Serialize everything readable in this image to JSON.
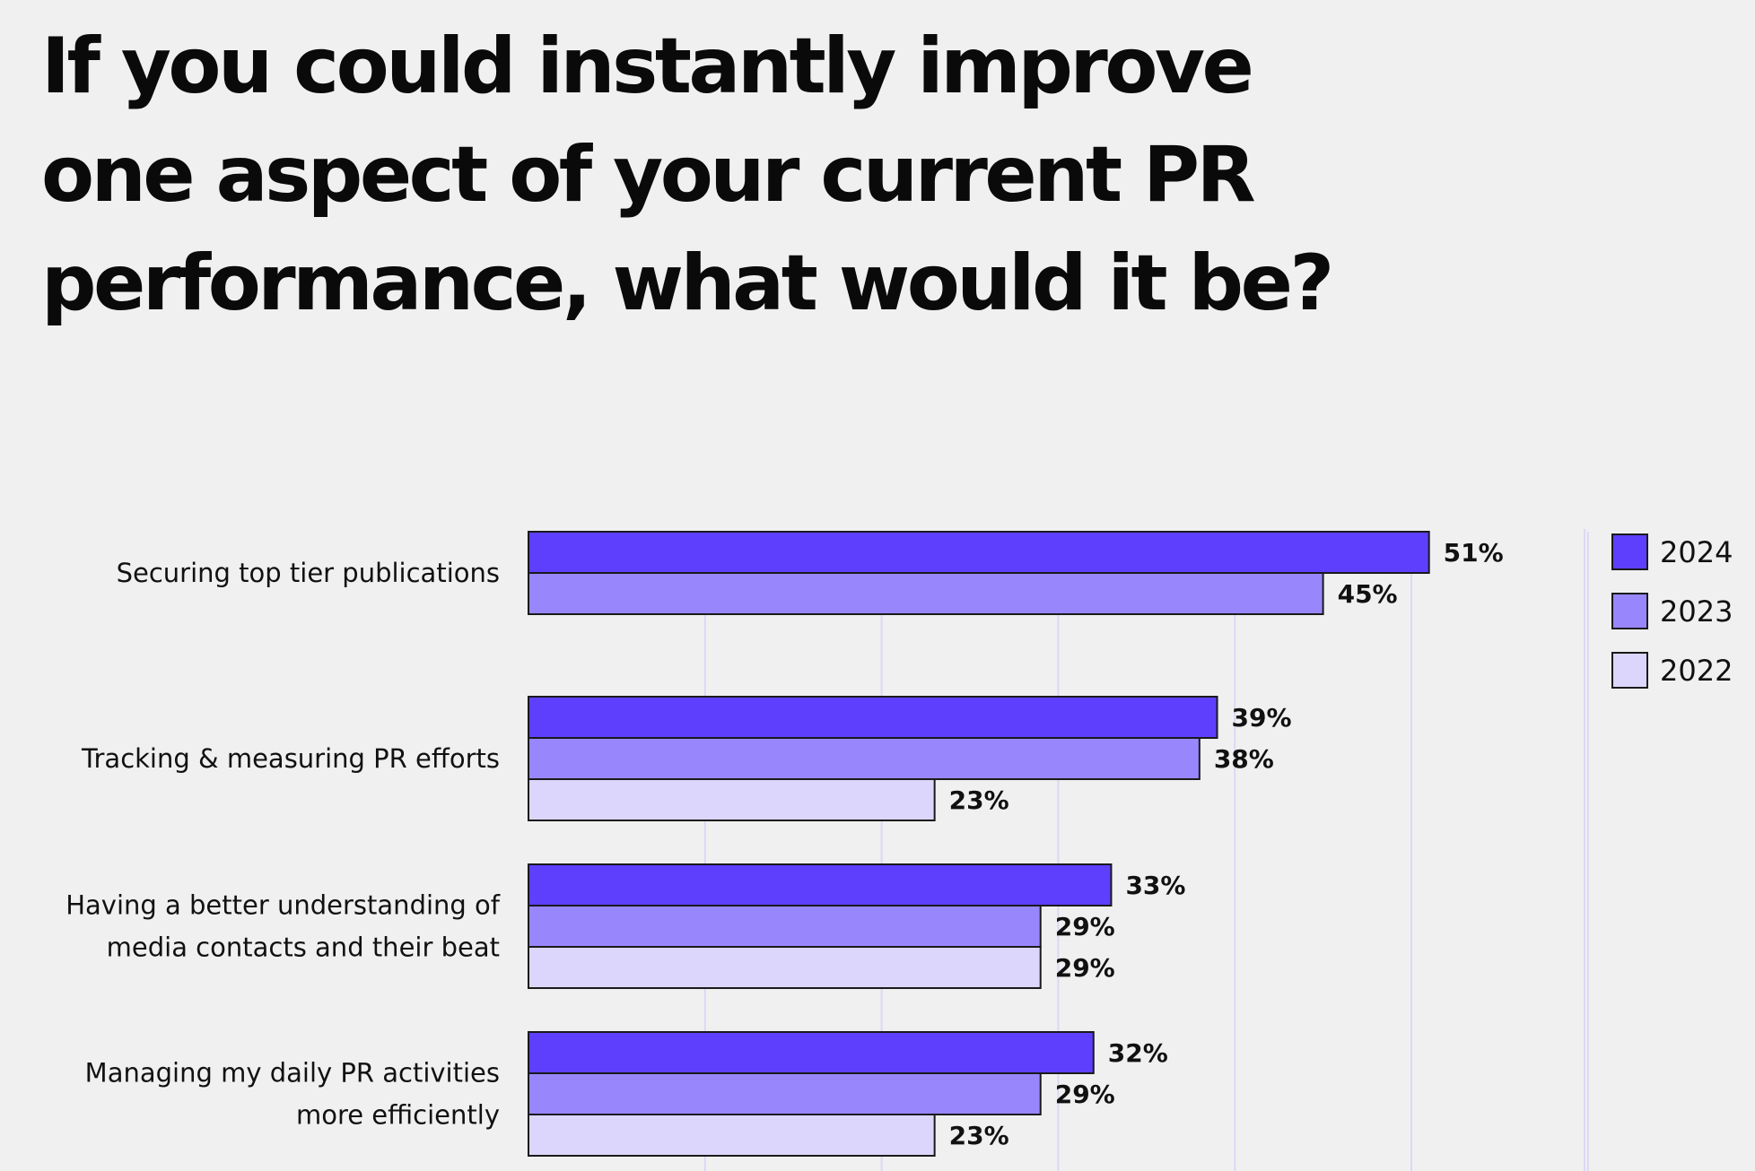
{
  "title_lines": [
    "If you could instantly improve",
    "one aspect of your current PR",
    "performance, what would it be?"
  ],
  "colors": {
    "background": "#f0f0f0",
    "bar_2024": "#5e3ffe",
    "bar_2023": "#9887fc",
    "bar_2022": "#dcd6fd",
    "bar_stroke": "#1a1a1a",
    "gridline": "#dcd8f5"
  },
  "chart_data": {
    "type": "bar",
    "orientation": "horizontal",
    "categories": [
      [
        "Securing top tier publications"
      ],
      [
        "Tracking & measuring PR efforts"
      ],
      [
        "Having a better understanding of",
        "media contacts and their beat"
      ],
      [
        "Managing my daily PR activities",
        "more efficiently"
      ]
    ],
    "series": [
      {
        "name": "2024",
        "values": [
          51,
          39,
          33,
          32
        ],
        "labels": [
          "51%",
          "39%",
          "33%",
          "32%"
        ]
      },
      {
        "name": "2023",
        "values": [
          45,
          38,
          29,
          29
        ],
        "labels": [
          "45%",
          "38%",
          "29%",
          "29%"
        ]
      },
      {
        "name": "2022",
        "values": [
          null,
          23,
          29,
          23
        ],
        "labels": [
          "",
          "23%",
          "29%",
          "23%"
        ]
      }
    ],
    "xlim": [
      0,
      60
    ],
    "grid": true,
    "legend_position": "top-right"
  }
}
